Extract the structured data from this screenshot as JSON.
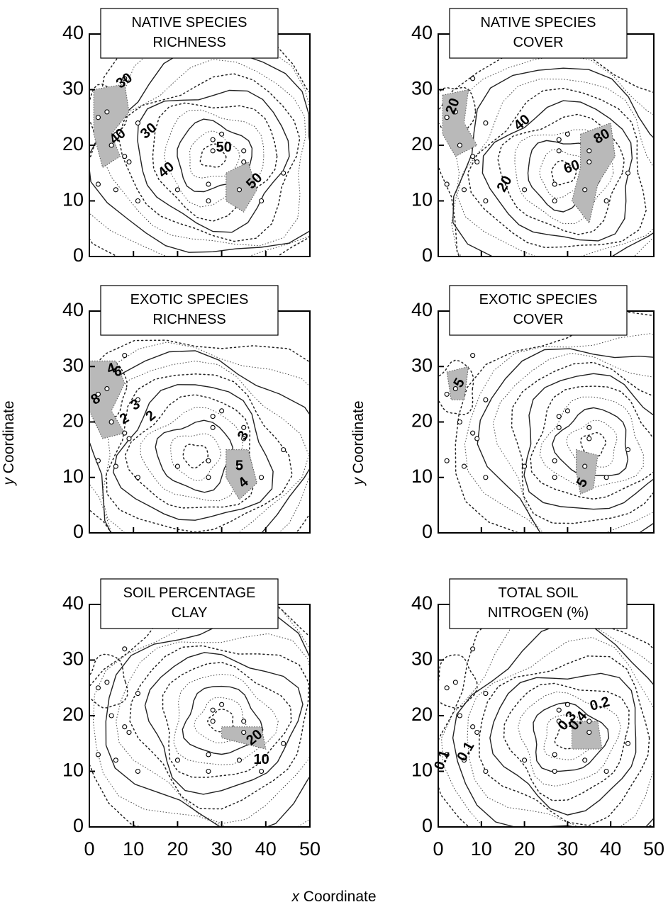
{
  "figure": {
    "x_axis_title_italic": "x",
    "x_axis_title_rest": " Coordinate",
    "y_axis_title_italic": "y",
    "y_axis_title_rest": " Coordinate"
  },
  "chart_data": [
    {
      "type": "contour",
      "title_lines": [
        "NATIVE SPECIES",
        "RICHNESS"
      ],
      "xlim": [
        0,
        50
      ],
      "ylim": [
        0,
        40
      ],
      "x_ticks": [],
      "y_ticks": [
        0,
        10,
        20,
        30,
        40
      ],
      "center": [
        28,
        18
      ],
      "contour_labels": [
        {
          "text": "30",
          "x": 8,
          "y": 31.5,
          "rotate": -35
        },
        {
          "text": "40",
          "x": 6.5,
          "y": 21.5,
          "rotate": -40
        },
        {
          "text": "30",
          "x": 13.5,
          "y": 22.5,
          "rotate": -40
        },
        {
          "text": "40",
          "x": 17.5,
          "y": 15.5,
          "rotate": -40
        },
        {
          "text": "50",
          "x": 30.5,
          "y": 19.5,
          "rotate": 0
        },
        {
          "text": "50",
          "x": 37.5,
          "y": 13.5,
          "rotate": -45
        }
      ],
      "hatched_regions": [
        {
          "points": [
            [
              1,
              30
            ],
            [
              8,
              31
            ],
            [
              9,
              26
            ],
            [
              5,
              22
            ],
            [
              7,
              18
            ],
            [
              3,
              16
            ],
            [
              1,
              22
            ]
          ]
        },
        {
          "points": [
            [
              31,
              15
            ],
            [
              36,
              17
            ],
            [
              38,
              12
            ],
            [
              35,
              8
            ],
            [
              31,
              10
            ]
          ]
        }
      ]
    },
    {
      "type": "contour",
      "title_lines": [
        "NATIVE SPECIES",
        "COVER"
      ],
      "xlim": [
        0,
        50
      ],
      "ylim": [
        0,
        40
      ],
      "x_ticks": [],
      "y_ticks": [
        0,
        10,
        20,
        30,
        40
      ],
      "center": [
        29,
        15
      ],
      "contour_labels": [
        {
          "text": "20",
          "x": 3.5,
          "y": 27,
          "rotate": -70
        },
        {
          "text": "40",
          "x": 19.5,
          "y": 24,
          "rotate": -40
        },
        {
          "text": "20",
          "x": 15.5,
          "y": 13,
          "rotate": -60
        },
        {
          "text": "80",
          "x": 38,
          "y": 21.5,
          "rotate": -30
        },
        {
          "text": "60",
          "x": 31,
          "y": 16,
          "rotate": -20
        }
      ],
      "hatched_regions": [
        {
          "points": [
            [
              1,
              29
            ],
            [
              7,
              30
            ],
            [
              6,
              24
            ],
            [
              9,
              20
            ],
            [
              4,
              18
            ],
            [
              1,
              22
            ]
          ]
        },
        {
          "points": [
            [
              33,
              22
            ],
            [
              40,
              24
            ],
            [
              41,
              18
            ],
            [
              37,
              13
            ],
            [
              35,
              6
            ],
            [
              31,
              10
            ],
            [
              33,
              16
            ]
          ]
        }
      ]
    },
    {
      "type": "contour",
      "title_lines": [
        "EXOTIC SPECIES",
        "RICHNESS"
      ],
      "xlim": [
        0,
        50
      ],
      "ylim": [
        0,
        40
      ],
      "x_ticks": [],
      "y_ticks": [
        0,
        10,
        20,
        30,
        40
      ],
      "center": [
        24,
        14
      ],
      "contour_labels": [
        {
          "text": "4",
          "x": 5,
          "y": 29.5,
          "rotate": -20
        },
        {
          "text": "6",
          "x": 6.5,
          "y": 29,
          "rotate": 0
        },
        {
          "text": "8",
          "x": 1.5,
          "y": 24,
          "rotate": -30
        },
        {
          "text": "2",
          "x": 8,
          "y": 20.5,
          "rotate": -30
        },
        {
          "text": "3",
          "x": 10.5,
          "y": 23,
          "rotate": -30
        },
        {
          "text": "2",
          "x": 14,
          "y": 21,
          "rotate": -40
        },
        {
          "text": "3",
          "x": 35,
          "y": 17.5,
          "rotate": -60
        },
        {
          "text": "5",
          "x": 34,
          "y": 12,
          "rotate": 0
        },
        {
          "text": "4",
          "x": 35,
          "y": 9,
          "rotate": -40
        }
      ],
      "hatched_regions": [
        {
          "points": [
            [
              0,
              31
            ],
            [
              6,
              31
            ],
            [
              8,
              27
            ],
            [
              5,
              22
            ],
            [
              8,
              18
            ],
            [
              3,
              17
            ],
            [
              0,
              22
            ]
          ]
        },
        {
          "points": [
            [
              31,
              15
            ],
            [
              36,
              15
            ],
            [
              38,
              9
            ],
            [
              34,
              6
            ],
            [
              31,
              10
            ]
          ]
        }
      ]
    },
    {
      "type": "contour",
      "title_lines": [
        "EXOTIC SPECIES",
        "COVER"
      ],
      "xlim": [
        0,
        50
      ],
      "ylim": [
        0,
        40
      ],
      "x_ticks": [],
      "y_ticks": [
        0,
        10,
        20,
        30,
        40
      ],
      "center": [
        36,
        16
      ],
      "contour_labels": [
        {
          "text": "5",
          "x": 5,
          "y": 27,
          "rotate": -60
        },
        {
          "text": "5",
          "x": 33.5,
          "y": 9,
          "rotate": -60
        }
      ],
      "hatched_regions": [
        {
          "points": [
            [
              2,
              29
            ],
            [
              7,
              30
            ],
            [
              6,
              24
            ],
            [
              3,
              24
            ]
          ]
        },
        {
          "points": [
            [
              32,
              15
            ],
            [
              37,
              14
            ],
            [
              36,
              8
            ],
            [
              33,
              7
            ],
            [
              32,
              11
            ]
          ]
        }
      ]
    },
    {
      "type": "contour",
      "title_lines": [
        "SOIL PERCENTAGE",
        "CLAY"
      ],
      "xlim": [
        0,
        50
      ],
      "ylim": [
        0,
        40
      ],
      "x_ticks": [
        0,
        10,
        20,
        30,
        40,
        50
      ],
      "y_ticks": [
        0,
        10,
        20,
        30,
        40
      ],
      "center": [
        30,
        19
      ],
      "contour_labels": [
        {
          "text": "20",
          "x": 37.5,
          "y": 16,
          "rotate": -40
        },
        {
          "text": "10",
          "x": 39,
          "y": 12,
          "rotate": 0
        }
      ],
      "hatched_regions": [
        {
          "points": [
            [
              30,
              18
            ],
            [
              39,
              18
            ],
            [
              40,
              14
            ],
            [
              35,
              15
            ],
            [
              30,
              16
            ]
          ]
        }
      ]
    },
    {
      "type": "contour",
      "title_lines": [
        "TOTAL SOIL",
        "NITROGEN (%)"
      ],
      "xlim": [
        0,
        50
      ],
      "ylim": [
        0,
        40
      ],
      "x_ticks": [
        0,
        10,
        20,
        30,
        40,
        50
      ],
      "y_ticks": [
        0,
        10,
        20,
        30,
        40
      ],
      "center": [
        30,
        16
      ],
      "contour_labels": [
        {
          "text": "0.1",
          "x": 1,
          "y": 12,
          "rotate": -70
        },
        {
          "text": "0.1",
          "x": 6.5,
          "y": 13.5,
          "rotate": -60
        },
        {
          "text": "0.3",
          "x": 30,
          "y": 19,
          "rotate": -50
        },
        {
          "text": "0.4",
          "x": 32.5,
          "y": 19,
          "rotate": -50
        },
        {
          "text": "0.2",
          "x": 37.5,
          "y": 22,
          "rotate": -15
        }
      ],
      "hatched_regions": [
        {
          "points": [
            [
              31,
              19
            ],
            [
              37,
              19
            ],
            [
              38,
              14
            ],
            [
              31,
              14
            ]
          ]
        }
      ]
    }
  ],
  "sample_points": [
    [
      2,
      25
    ],
    [
      4,
      26
    ],
    [
      8,
      32
    ],
    [
      11,
      24
    ],
    [
      5,
      20
    ],
    [
      8,
      18
    ],
    [
      9,
      17
    ],
    [
      2,
      13
    ],
    [
      6,
      12
    ],
    [
      11,
      10
    ],
    [
      20,
      12
    ],
    [
      27,
      13
    ],
    [
      27,
      10
    ],
    [
      34,
      12
    ],
    [
      28,
      21
    ],
    [
      28,
      19
    ],
    [
      30,
      22
    ],
    [
      35,
      19
    ],
    [
      35,
      17
    ],
    [
      39,
      10
    ],
    [
      44,
      15
    ]
  ]
}
